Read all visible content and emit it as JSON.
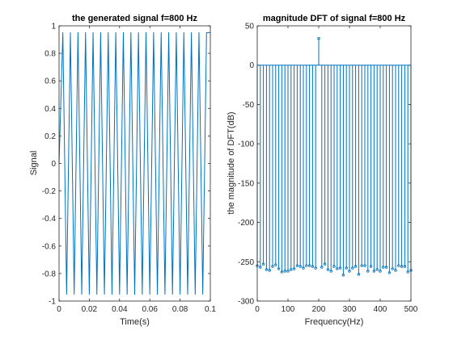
{
  "chart_data": [
    {
      "type": "line",
      "title": "the generated signal f=800 Hz",
      "xlabel": "Time(s)",
      "ylabel": "Signal",
      "xlim": [
        0,
        0.1
      ],
      "ylim": [
        -1,
        1
      ],
      "xticks": [
        "0",
        "0.02",
        "0.04",
        "0.06",
        "0.08",
        "0.1"
      ],
      "yticks": [
        "-1",
        "-0.8",
        "-0.6",
        "-0.4",
        "-0.2",
        "0",
        "0.2",
        "0.4",
        "0.6",
        "0.8",
        "1"
      ],
      "series": [
        {
          "color": "#0072bd",
          "x": [
            0,
            0.0025,
            0.005,
            0.0075,
            0.01,
            0.0125,
            0.015,
            0.0175,
            0.02,
            0.0225,
            0.025,
            0.0275,
            0.03,
            0.0325,
            0.035,
            0.0375,
            0.04,
            0.0425,
            0.045,
            0.0475,
            0.05,
            0.0525,
            0.055,
            0.0575,
            0.06,
            0.0625,
            0.065,
            0.0675,
            0.07,
            0.0725,
            0.075,
            0.0775,
            0.08,
            0.0825,
            0.085,
            0.0875,
            0.09,
            0.0925,
            0.095,
            0.0975,
            0.1
          ],
          "y": [
            0,
            0.951,
            -0.951,
            0.951,
            -0.951,
            0.951,
            -0.951,
            0.951,
            -0.951,
            0.951,
            -0.951,
            0.951,
            -0.951,
            0.951,
            -0.951,
            0.951,
            -0.951,
            0.951,
            -0.951,
            0.951,
            -0.951,
            0.951,
            -0.951,
            0.951,
            -0.951,
            0.951,
            -0.951,
            0.951,
            -0.951,
            0.951,
            -0.951,
            0.951,
            -0.951,
            0.951,
            -0.951,
            0.951,
            -0.951,
            0.951,
            -0.951,
            0.951,
            0.951
          ]
        }
      ]
    },
    {
      "type": "stem",
      "title": "magnitude DFT of signal f=800 Hz",
      "xlabel": "Frequency(Hz)",
      "ylabel": "the magnitude of DFT(dB)",
      "xlim": [
        0,
        500
      ],
      "ylim": [
        -300,
        50
      ],
      "xticks": [
        "0",
        "100",
        "200",
        "300",
        "400",
        "500"
      ],
      "yticks": [
        "-300",
        "-250",
        "-200",
        "-150",
        "-100",
        "-50",
        "0",
        "50"
      ],
      "series": [
        {
          "color": "#0072bd",
          "x": [
            0,
            10,
            20,
            30,
            40,
            50,
            60,
            70,
            80,
            90,
            100,
            110,
            120,
            130,
            140,
            150,
            160,
            170,
            180,
            190,
            200,
            210,
            220,
            230,
            240,
            250,
            260,
            270,
            280,
            290,
            300,
            310,
            320,
            330,
            340,
            350,
            360,
            370,
            380,
            390,
            400,
            410,
            420,
            430,
            440,
            450,
            460,
            470,
            480,
            490,
            500
          ],
          "y": [
            -255,
            -257,
            -253,
            -260,
            -261,
            -256,
            -254,
            -259,
            -263,
            -262,
            -262,
            -260,
            -259,
            -255,
            -256,
            -258,
            -255,
            -255,
            -256,
            -258,
            34,
            -257,
            -253,
            -260,
            -262,
            -256,
            -259,
            -258,
            -267,
            -258,
            -262,
            -258,
            -256,
            -266,
            -255,
            -255,
            -262,
            -256,
            -262,
            -260,
            -262,
            -257,
            -257,
            -264,
            -259,
            -261,
            -255,
            -256,
            -256,
            -263,
            -261
          ]
        }
      ]
    }
  ]
}
